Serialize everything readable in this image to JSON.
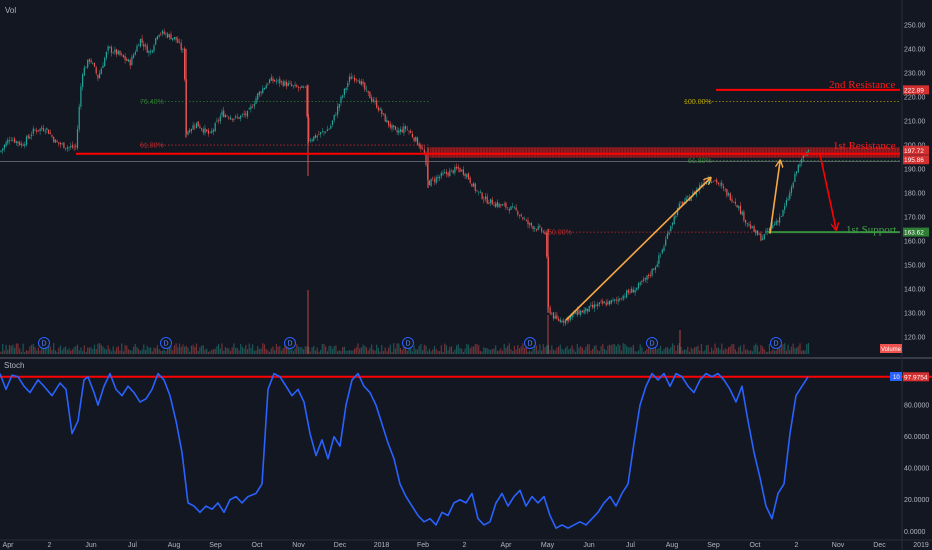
{
  "colors": {
    "background": "#131722",
    "up": "#26a69a",
    "down": "#ef5350",
    "resistance": "#ff0000",
    "support": "#388e3c",
    "arrow": "#f7a844",
    "stoch": "#2962ff",
    "divider": "#787b86"
  },
  "top_left_label": "Vol",
  "stoch_label": "Stoch",
  "volume_label": "Volume",
  "stoch_interval_tag": "10",
  "dividend_marker": "D",
  "annotations": {
    "second_resistance": "2nd Resistance",
    "first_resistance": "1st Resistance",
    "first_support": "1st Support"
  },
  "price_tags": {
    "r2": "222.89",
    "r1_top": "197.72",
    "r1_bottom": "195.86",
    "s1": "163.62",
    "stoch_last": "97.9754"
  },
  "chart_data": [
    {
      "type": "candlestick",
      "ylim": [
        112,
        257
      ],
      "yticks": [
        "250.00",
        "240.00",
        "230.00",
        "220.00",
        "210.00",
        "200.00",
        "190.00",
        "180.00",
        "170.00",
        "160.00",
        "150.00",
        "140.00",
        "130.00",
        "120.00"
      ],
      "xticks": [
        "Apr",
        "2",
        "Jun",
        "Jul",
        "Aug",
        "Sep",
        "Oct",
        "Nov",
        "Dec",
        "2018",
        "Feb",
        "2",
        "Apr",
        "May",
        "Jun",
        "Jul",
        "Aug",
        "Sep",
        "Oct",
        "2",
        "Nov",
        "Dec",
        "2019"
      ],
      "price_path": [
        [
          0,
          197
        ],
        [
          10,
          203
        ],
        [
          22,
          200
        ],
        [
          34,
          206
        ],
        [
          46,
          207
        ],
        [
          56,
          201
        ],
        [
          68,
          199
        ],
        [
          76,
          199
        ],
        [
          82,
          230
        ],
        [
          90,
          236
        ],
        [
          98,
          228
        ],
        [
          108,
          240
        ],
        [
          118,
          238
        ],
        [
          130,
          234
        ],
        [
          140,
          244
        ],
        [
          150,
          238
        ],
        [
          158,
          247
        ],
        [
          166,
          246
        ],
        [
          176,
          244
        ],
        [
          184,
          238
        ],
        [
          186,
          205
        ],
        [
          196,
          209
        ],
        [
          210,
          204
        ],
        [
          222,
          213
        ],
        [
          236,
          211
        ],
        [
          248,
          213
        ],
        [
          258,
          221
        ],
        [
          270,
          227
        ],
        [
          282,
          226
        ],
        [
          294,
          224
        ],
        [
          306,
          223
        ],
        [
          308,
          202
        ],
        [
          318,
          204
        ],
        [
          330,
          207
        ],
        [
          340,
          218
        ],
        [
          350,
          228
        ],
        [
          358,
          228
        ],
        [
          366,
          222
        ],
        [
          376,
          217
        ],
        [
          386,
          210
        ],
        [
          396,
          205
        ],
        [
          406,
          207
        ],
        [
          416,
          202
        ],
        [
          424,
          197
        ],
        [
          428,
          184
        ],
        [
          436,
          186
        ],
        [
          446,
          188
        ],
        [
          458,
          190
        ],
        [
          466,
          188
        ],
        [
          476,
          181
        ],
        [
          486,
          177
        ],
        [
          498,
          175
        ],
        [
          508,
          174
        ],
        [
          518,
          172
        ],
        [
          528,
          167
        ],
        [
          538,
          165
        ],
        [
          546,
          163
        ],
        [
          548,
          132
        ],
        [
          556,
          127
        ],
        [
          566,
          127
        ],
        [
          576,
          130
        ],
        [
          586,
          131
        ],
        [
          596,
          133
        ],
        [
          606,
          134
        ],
        [
          616,
          135
        ],
        [
          626,
          138
        ],
        [
          636,
          140
        ],
        [
          646,
          144
        ],
        [
          656,
          150
        ],
        [
          664,
          158
        ],
        [
          670,
          166
        ],
        [
          680,
          175
        ],
        [
          690,
          178
        ],
        [
          700,
          183
        ],
        [
          708,
          186
        ],
        [
          716,
          185
        ],
        [
          726,
          180
        ],
        [
          736,
          176
        ],
        [
          746,
          168
        ],
        [
          756,
          163
        ],
        [
          762,
          161
        ],
        [
          768,
          164
        ],
        [
          774,
          167
        ],
        [
          782,
          171
        ],
        [
          790,
          180
        ],
        [
          798,
          191
        ],
        [
          804,
          195
        ],
        [
          808,
          198
        ]
      ],
      "gaps": [
        [
          184,
          186
        ],
        [
          306,
          308
        ],
        [
          424,
          428
        ],
        [
          546,
          548
        ]
      ],
      "volume_spikes": [
        [
          308,
          290
        ],
        [
          548,
          315
        ],
        [
          680,
          330
        ]
      ],
      "fib_levels": [
        {
          "label": "76.40%",
          "price": 218.0,
          "x1": 140,
          "x2": 430,
          "color": "#2e7d32"
        },
        {
          "label": "61.80%",
          "price": 199.9,
          "x1": 140,
          "x2": 430,
          "color": "#c62828"
        },
        {
          "label": "100.00%",
          "price": 218.0,
          "x1": 684,
          "x2": 900,
          "color": "#b2a000"
        },
        {
          "label": "61.80%",
          "price": 193.5,
          "x1": 688,
          "x2": 900,
          "color": "#2e7d32"
        },
        {
          "label": "50.00%",
          "price": 163.6,
          "x1": 548,
          "x2": 900,
          "color": "#c62828"
        }
      ],
      "lines": {
        "resistance2": {
          "price": 222.89,
          "x1": 716,
          "x2": 900
        },
        "resistance1_zone": {
          "top": 197.72,
          "bottom": 195.86,
          "x1": 430,
          "x2": 900
        },
        "resistance1_long": {
          "price": 195.86,
          "x1": 76,
          "x2": 900
        },
        "support1": {
          "price": 163.62,
          "x1": 768,
          "x2": 900
        }
      },
      "arrows": [
        {
          "from": [
            566,
            127
          ],
          "to": [
            710,
            186
          ],
          "color": "#f7a844"
        },
        {
          "from": [
            770,
            163
          ],
          "to": [
            780,
            193
          ],
          "color": "#f7a844"
        },
        {
          "from": [
            820,
            196
          ],
          "to": [
            836,
            165
          ],
          "color": "#ff0000"
        }
      ],
      "dividends_x": [
        44,
        166,
        290,
        408,
        530,
        652,
        776
      ]
    },
    {
      "type": "line",
      "name": "Stoch",
      "ylim": [
        -3,
        108
      ],
      "yticks": [
        "80.0000",
        "60.0000",
        "40.0000",
        "20.0000",
        "0.0000"
      ],
      "overbought_line": 97.9754,
      "points": [
        [
          0,
          100
        ],
        [
          6,
          90
        ],
        [
          12,
          99
        ],
        [
          18,
          98
        ],
        [
          24,
          92
        ],
        [
          30,
          88
        ],
        [
          38,
          96
        ],
        [
          44,
          92
        ],
        [
          52,
          86
        ],
        [
          60,
          94
        ],
        [
          66,
          90
        ],
        [
          72,
          62
        ],
        [
          78,
          70
        ],
        [
          84,
          96
        ],
        [
          88,
          98
        ],
        [
          94,
          88
        ],
        [
          98,
          80
        ],
        [
          104,
          92
        ],
        [
          110,
          100
        ],
        [
          116,
          90
        ],
        [
          122,
          86
        ],
        [
          128,
          92
        ],
        [
          134,
          88
        ],
        [
          140,
          82
        ],
        [
          146,
          84
        ],
        [
          152,
          90
        ],
        [
          158,
          100
        ],
        [
          164,
          96
        ],
        [
          170,
          86
        ],
        [
          176,
          70
        ],
        [
          182,
          50
        ],
        [
          188,
          18
        ],
        [
          194,
          16
        ],
        [
          200,
          12
        ],
        [
          206,
          16
        ],
        [
          212,
          14
        ],
        [
          218,
          18
        ],
        [
          224,
          12
        ],
        [
          230,
          20
        ],
        [
          236,
          22
        ],
        [
          242,
          18
        ],
        [
          248,
          22
        ],
        [
          256,
          24
        ],
        [
          262,
          30
        ],
        [
          268,
          90
        ],
        [
          274,
          100
        ],
        [
          280,
          98
        ],
        [
          286,
          92
        ],
        [
          292,
          86
        ],
        [
          298,
          90
        ],
        [
          304,
          82
        ],
        [
          310,
          62
        ],
        [
          316,
          48
        ],
        [
          322,
          58
        ],
        [
          328,
          46
        ],
        [
          334,
          60
        ],
        [
          340,
          54
        ],
        [
          346,
          80
        ],
        [
          352,
          96
        ],
        [
          358,
          100
        ],
        [
          364,
          92
        ],
        [
          370,
          88
        ],
        [
          376,
          80
        ],
        [
          382,
          68
        ],
        [
          388,
          56
        ],
        [
          394,
          46
        ],
        [
          400,
          30
        ],
        [
          406,
          22
        ],
        [
          412,
          16
        ],
        [
          418,
          10
        ],
        [
          424,
          6
        ],
        [
          430,
          8
        ],
        [
          436,
          4
        ],
        [
          442,
          12
        ],
        [
          448,
          10
        ],
        [
          454,
          18
        ],
        [
          460,
          20
        ],
        [
          466,
          18
        ],
        [
          472,
          24
        ],
        [
          478,
          8
        ],
        [
          484,
          4
        ],
        [
          490,
          6
        ],
        [
          496,
          18
        ],
        [
          502,
          24
        ],
        [
          508,
          16
        ],
        [
          514,
          22
        ],
        [
          520,
          26
        ],
        [
          526,
          16
        ],
        [
          532,
          22
        ],
        [
          538,
          18
        ],
        [
          544,
          22
        ],
        [
          550,
          10
        ],
        [
          556,
          2
        ],
        [
          562,
          4
        ],
        [
          568,
          2
        ],
        [
          574,
          4
        ],
        [
          580,
          6
        ],
        [
          586,
          4
        ],
        [
          592,
          8
        ],
        [
          598,
          12
        ],
        [
          604,
          18
        ],
        [
          610,
          22
        ],
        [
          616,
          16
        ],
        [
          622,
          24
        ],
        [
          628,
          30
        ],
        [
          634,
          56
        ],
        [
          640,
          80
        ],
        [
          646,
          92
        ],
        [
          652,
          100
        ],
        [
          658,
          96
        ],
        [
          664,
          100
        ],
        [
          670,
          92
        ],
        [
          676,
          100
        ],
        [
          682,
          98
        ],
        [
          688,
          92
        ],
        [
          694,
          88
        ],
        [
          700,
          96
        ],
        [
          706,
          100
        ],
        [
          712,
          98
        ],
        [
          718,
          100
        ],
        [
          724,
          96
        ],
        [
          730,
          90
        ],
        [
          736,
          82
        ],
        [
          742,
          92
        ],
        [
          748,
          70
        ],
        [
          754,
          50
        ],
        [
          760,
          34
        ],
        [
          766,
          16
        ],
        [
          772,
          8
        ],
        [
          778,
          24
        ],
        [
          784,
          30
        ],
        [
          790,
          62
        ],
        [
          796,
          86
        ],
        [
          802,
          92
        ],
        [
          808,
          97.98
        ]
      ]
    }
  ]
}
